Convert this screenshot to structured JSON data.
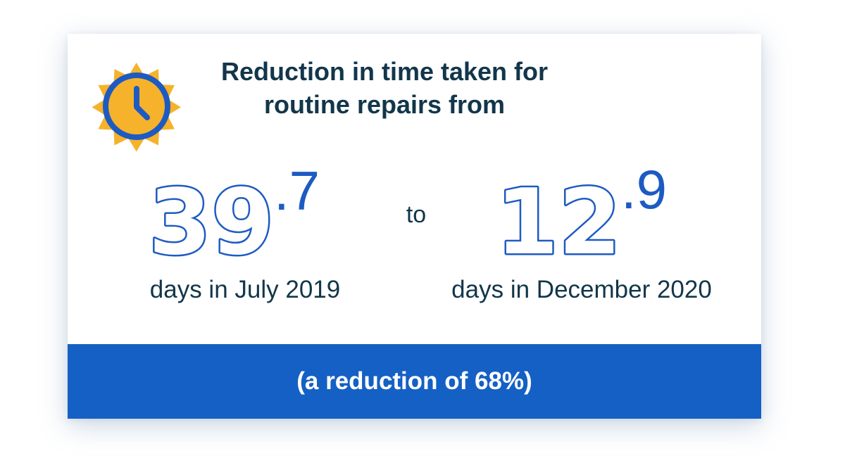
{
  "headline": {
    "line1": "Reduction in time taken for",
    "line2": "routine repairs from"
  },
  "from": {
    "whole": "39",
    "decimal": ".7",
    "caption": "days in July 2019"
  },
  "connector": "to",
  "to": {
    "whole": "12",
    "decimal": ".9",
    "caption": "days in December 2020"
  },
  "footer": "(a reduction of 68%)",
  "icons": {
    "badge": "clock-icon"
  },
  "colors": {
    "primary_blue": "#1d5bc2",
    "footer_blue": "#1560c4",
    "badge_yellow": "#f6b22b",
    "text_navy": "#12364a"
  }
}
